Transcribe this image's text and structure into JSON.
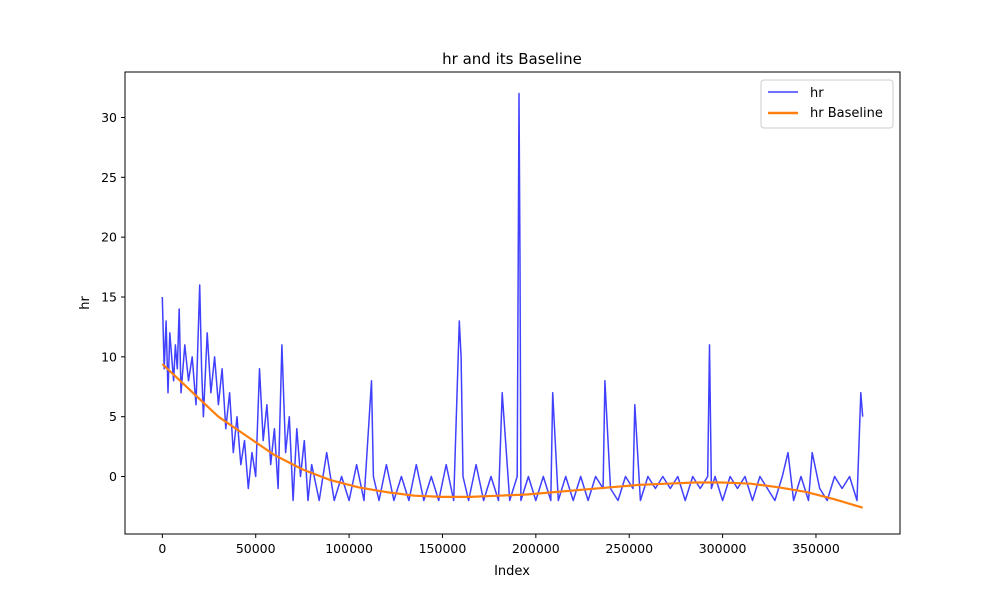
{
  "chart_data": {
    "type": "line",
    "title": "hr and its Baseline",
    "xlabel": "Index",
    "ylabel": "hr",
    "xlim": [
      -20000,
      395000
    ],
    "ylim": [
      -4.8,
      33.8
    ],
    "xticks": [
      0,
      50000,
      100000,
      150000,
      200000,
      250000,
      300000,
      350000
    ],
    "xtick_labels": [
      "0",
      "50000",
      "100000",
      "150000",
      "200000",
      "250000",
      "300000",
      "350000"
    ],
    "yticks": [
      0,
      5,
      10,
      15,
      20,
      25,
      30
    ],
    "ytick_labels": [
      "0",
      "5",
      "10",
      "15",
      "20",
      "25",
      "30"
    ],
    "grid": false,
    "legend_position": "top-right",
    "series": [
      {
        "name": "hr",
        "color": "#4040ff",
        "x": [
          0,
          1000,
          2000,
          3000,
          4000,
          5000,
          6000,
          7000,
          8000,
          9000,
          10000,
          12000,
          14000,
          16000,
          18000,
          20000,
          21000,
          22000,
          24000,
          26000,
          28000,
          30000,
          32000,
          34000,
          36000,
          38000,
          40000,
          42000,
          44000,
          46000,
          48000,
          50000,
          52000,
          54000,
          56000,
          58000,
          60000,
          62000,
          64000,
          66000,
          68000,
          70000,
          72000,
          74000,
          76000,
          78000,
          80000,
          84000,
          88000,
          92000,
          96000,
          100000,
          104000,
          108000,
          112000,
          113000,
          116000,
          120000,
          124000,
          128000,
          132000,
          136000,
          140000,
          144000,
          148000,
          152000,
          156000,
          159000,
          160000,
          161000,
          164000,
          168000,
          172000,
          176000,
          180000,
          182000,
          186000,
          190000,
          191000,
          191500,
          192000,
          196000,
          200000,
          204000,
          208000,
          209000,
          212000,
          216000,
          220000,
          224000,
          228000,
          232000,
          236000,
          237000,
          240000,
          244000,
          248000,
          252000,
          253000,
          256000,
          260000,
          264000,
          268000,
          272000,
          276000,
          280000,
          284000,
          288000,
          292000,
          293000,
          294000,
          296000,
          300000,
          304000,
          308000,
          312000,
          316000,
          320000,
          324000,
          328000,
          332000,
          335000,
          338000,
          342000,
          346000,
          348000,
          352000,
          356000,
          360000,
          364000,
          368000,
          372000,
          374000,
          375000
        ],
        "y": [
          15,
          9,
          13,
          7,
          12,
          10,
          8,
          11,
          9,
          14,
          7,
          11,
          8,
          10,
          6,
          16,
          9,
          5,
          12,
          7,
          10,
          6,
          9,
          4,
          7,
          2,
          5,
          1,
          3,
          -1,
          2,
          0,
          9,
          3,
          6,
          1,
          4,
          -1,
          11,
          2,
          5,
          -2,
          4,
          0,
          3,
          -2,
          1,
          -2,
          2,
          -2,
          0,
          -2,
          1,
          -2,
          8,
          0,
          -2,
          1,
          -2,
          0,
          -2,
          1,
          -2,
          0,
          -2,
          1,
          -2,
          13,
          10,
          0,
          -2,
          1,
          -2,
          0,
          -2,
          7,
          -2,
          0,
          32,
          18,
          -2,
          0,
          -2,
          0,
          -2,
          7,
          -2,
          0,
          -2,
          0,
          -2,
          0,
          -1,
          8,
          -1,
          -2,
          0,
          -1,
          6,
          -2,
          0,
          -1,
          0,
          -1,
          0,
          -2,
          0,
          -1,
          0,
          11,
          -1,
          0,
          -2,
          0,
          -1,
          0,
          -2,
          0,
          -1,
          -2,
          0,
          2,
          -2,
          0,
          -2,
          2,
          -1,
          -2,
          0,
          -1,
          0,
          -2,
          7,
          5
        ]
      },
      {
        "name": "hr Baseline",
        "color": "#ff7f0e",
        "x": [
          0,
          15000,
          30000,
          45000,
          60000,
          75000,
          90000,
          105000,
          120000,
          135000,
          150000,
          165000,
          180000,
          195000,
          210000,
          225000,
          240000,
          255000,
          270000,
          285000,
          300000,
          315000,
          330000,
          345000,
          360000,
          375000
        ],
        "y": [
          9.4,
          7.2,
          5.0,
          3.4,
          1.8,
          0.6,
          -0.3,
          -0.9,
          -1.3,
          -1.6,
          -1.7,
          -1.7,
          -1.6,
          -1.5,
          -1.3,
          -1.1,
          -0.9,
          -0.7,
          -0.6,
          -0.5,
          -0.5,
          -0.6,
          -0.9,
          -1.3,
          -1.9,
          -2.6
        ]
      }
    ]
  }
}
